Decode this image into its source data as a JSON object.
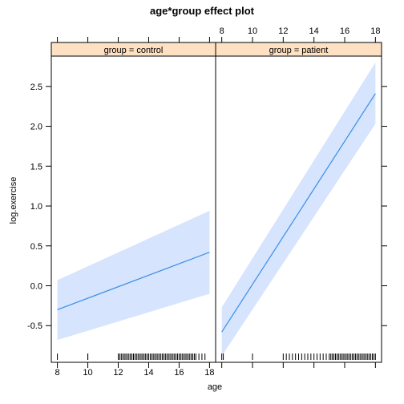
{
  "chart_data": {
    "type": "line",
    "title": "age*group effect plot",
    "xlabel": "age",
    "ylabel": "log.exercise",
    "xlim": [
      7.6,
      18.4
    ],
    "ylim": [
      -0.96,
      2.88
    ],
    "x_ticks": [
      8,
      10,
      12,
      14,
      16,
      18
    ],
    "y_ticks": [
      -0.5,
      0.0,
      0.5,
      1.0,
      1.5,
      2.0,
      2.5
    ],
    "y_tick_labels": [
      "-0.5",
      "0.0",
      "0.5",
      "1.0",
      "1.5",
      "2.0",
      "2.5"
    ],
    "colors": {
      "line": "#3b8ee8",
      "band": "#d6e4fd",
      "strip": "#fee0c2",
      "frame": "#000000"
    },
    "panels": [
      {
        "strip_label": "group = control",
        "x": [
          8,
          18
        ],
        "fit": [
          -0.3,
          0.42
        ],
        "lower": [
          -0.68,
          -0.1
        ],
        "upper": [
          0.07,
          0.94
        ],
        "rug": [
          8.0,
          10.0,
          10.0,
          12.0,
          12.1,
          12.2,
          12.3,
          12.4,
          12.5,
          12.6,
          12.7,
          12.8,
          12.9,
          13.0,
          13.1,
          13.2,
          13.3,
          13.4,
          13.5,
          13.6,
          13.7,
          13.8,
          13.9,
          14.0,
          14.1,
          14.2,
          14.3,
          14.4,
          14.5,
          14.6,
          14.7,
          14.8,
          14.9,
          15.0,
          15.1,
          15.2,
          15.3,
          15.4,
          15.5,
          15.6,
          15.7,
          15.8,
          15.9,
          16.0,
          16.1,
          16.2,
          16.3,
          16.4,
          16.5,
          16.6,
          16.7,
          16.8,
          16.9,
          17.0,
          17.1,
          17.3,
          17.5,
          17.7
        ]
      },
      {
        "strip_label": "group = patient",
        "x": [
          8,
          18
        ],
        "fit": [
          -0.58,
          2.41
        ],
        "lower": [
          -0.88,
          2.03
        ],
        "upper": [
          -0.27,
          2.8
        ],
        "rug": [
          8.0,
          8.1,
          10.0,
          12.0,
          12.2,
          12.4,
          12.6,
          12.8,
          13.0,
          13.2,
          13.4,
          13.6,
          13.8,
          14.0,
          14.2,
          14.4,
          14.6,
          14.8,
          15.0,
          15.1,
          15.2,
          15.3,
          15.4,
          15.5,
          15.6,
          15.7,
          15.8,
          15.9,
          16.0,
          16.1,
          16.2,
          16.3,
          16.4,
          16.5,
          16.6,
          16.7,
          16.8,
          16.9,
          17.0,
          17.1,
          17.2,
          17.3,
          17.4,
          17.5,
          17.6,
          17.7,
          17.8,
          17.9,
          18.0
        ]
      }
    ]
  }
}
